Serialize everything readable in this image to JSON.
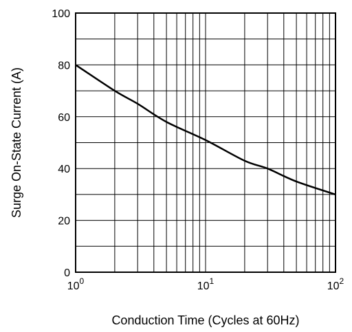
{
  "chart_data": {
    "type": "line",
    "title": "",
    "xlabel": "Conduction Time  (Cycles at 60Hz)",
    "ylabel": "Surge On-State Current  (A)",
    "x_scale": "log",
    "xlim": [
      1,
      100
    ],
    "ylim": [
      0,
      100
    ],
    "grid": true,
    "x_ticks": [
      {
        "value": 1,
        "base": "10",
        "exp": "0"
      },
      {
        "value": 10,
        "base": "10",
        "exp": "1"
      },
      {
        "value": 100,
        "base": "10",
        "exp": "2"
      }
    ],
    "y_ticks": [
      {
        "value": 0,
        "label": "0"
      },
      {
        "value": 20,
        "label": "20"
      },
      {
        "value": 40,
        "label": "40"
      },
      {
        "value": 60,
        "label": "60"
      },
      {
        "value": 80,
        "label": "80"
      },
      {
        "value": 100,
        "label": "100"
      }
    ],
    "series": [
      {
        "color": "#000000",
        "x": [
          1,
          2,
          3,
          5,
          10,
          20,
          30,
          50,
          100
        ],
        "y": [
          80,
          70,
          65,
          58,
          51,
          43,
          40,
          35,
          30
        ]
      }
    ]
  }
}
